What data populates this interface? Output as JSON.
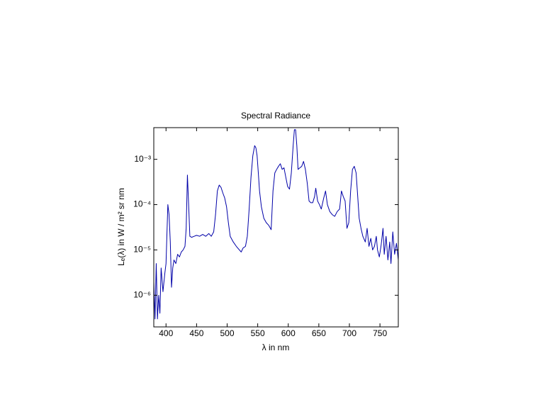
{
  "chart_data": {
    "type": "line",
    "title": "Spectral Radiance",
    "x_label": "λ in nm",
    "y_label": "Lₑ(λ) in W / m² sr nm",
    "log_y": true,
    "color": "#0000a8",
    "xlim": [
      380,
      780
    ],
    "xticks": [
      400,
      450,
      500,
      550,
      600,
      650,
      700,
      750
    ],
    "ylim": [
      2e-07,
      0.005
    ],
    "yticks": [
      {
        "value": 1e-06,
        "label": "10⁻⁶"
      },
      {
        "value": 1e-05,
        "label": "10⁻⁵"
      },
      {
        "value": 0.0001,
        "label": "10⁻⁴"
      },
      {
        "value": 0.001,
        "label": "10⁻³"
      }
    ],
    "x": [
      380,
      382,
      384,
      386,
      388,
      390,
      392,
      395,
      398,
      400,
      403,
      405,
      407,
      409,
      411,
      413,
      416,
      419,
      422,
      425,
      428,
      431,
      433,
      435,
      437,
      439,
      442,
      446,
      450,
      455,
      460,
      465,
      470,
      474,
      478,
      481,
      484,
      487,
      490,
      493,
      496,
      499,
      502,
      505,
      510,
      515,
      520,
      523,
      526,
      530,
      533,
      536,
      539,
      542,
      545,
      547,
      549,
      551,
      553,
      556,
      560,
      564,
      568,
      572,
      575,
      578,
      581,
      584,
      587,
      590,
      593,
      596,
      599,
      602,
      605,
      608,
      610,
      612,
      614,
      616,
      619,
      622,
      625,
      628,
      631,
      634,
      637,
      640,
      643,
      645,
      648,
      651,
      654,
      658,
      661,
      664,
      668,
      672,
      676,
      680,
      684,
      687,
      690,
      693,
      696,
      699,
      702,
      705,
      708,
      711,
      713,
      716,
      719,
      722,
      726,
      729,
      732,
      735,
      738,
      741,
      744,
      746,
      749,
      752,
      755,
      757,
      760,
      763,
      766,
      768,
      771,
      774,
      777,
      780
    ],
    "values": [
      2e-06,
      3e-07,
      5e-06,
      3e-07,
      1e-06,
      4e-07,
      4e-06,
      1.2e-06,
      3e-06,
      5e-06,
      0.0001,
      6e-05,
      1.5e-05,
      1.5e-06,
      4e-06,
      6e-06,
      5e-06,
      8e-06,
      7e-06,
      9e-06,
      1e-05,
      1.2e-05,
      3e-05,
      0.00045,
      0.0001,
      2e-05,
      1.9e-05,
      2e-05,
      2.1e-05,
      2e-05,
      2.2e-05,
      2e-05,
      2.3e-05,
      2e-05,
      2.5e-05,
      6e-05,
      0.0002,
      0.00027,
      0.00024,
      0.00018,
      0.00014,
      9e-05,
      4e-05,
      2e-05,
      1.5e-05,
      1.2e-05,
      1e-05,
      9e-06,
      1.1e-05,
      1.2e-05,
      2e-05,
      8e-05,
      0.0004,
      0.0012,
      0.002,
      0.0018,
      0.0012,
      0.0005,
      0.0002,
      9e-05,
      5e-05,
      4e-05,
      3.5e-05,
      2.8e-05,
      0.0002,
      0.0005,
      0.0006,
      0.0007,
      0.0008,
      0.0006,
      0.00065,
      0.0004,
      0.00025,
      0.00022,
      0.0005,
      0.002,
      0.0045,
      0.0045,
      0.002,
      0.0006,
      0.00065,
      0.0007,
      0.0009,
      0.0006,
      0.0003,
      0.00012,
      0.00011,
      0.00011,
      0.00015,
      0.00023,
      0.00012,
      0.0001,
      8e-05,
      0.00014,
      0.0002,
      0.0001,
      7e-05,
      6e-05,
      5.5e-05,
      7e-05,
      8e-05,
      0.0002,
      0.00015,
      0.00012,
      3e-05,
      4e-05,
      0.0002,
      0.0006,
      0.0007,
      0.0005,
      0.0002,
      5e-05,
      3e-05,
      2e-05,
      1.5e-05,
      3e-05,
      1.2e-05,
      1.8e-05,
      1e-05,
      1.2e-05,
      2e-05,
      1e-05,
      7e-06,
      1.3e-05,
      3e-05,
      8e-06,
      2e-05,
      6e-06,
      1.5e-05,
      5e-06,
      2.5e-05,
      8e-06,
      1.4e-05,
      6e-06
    ]
  }
}
